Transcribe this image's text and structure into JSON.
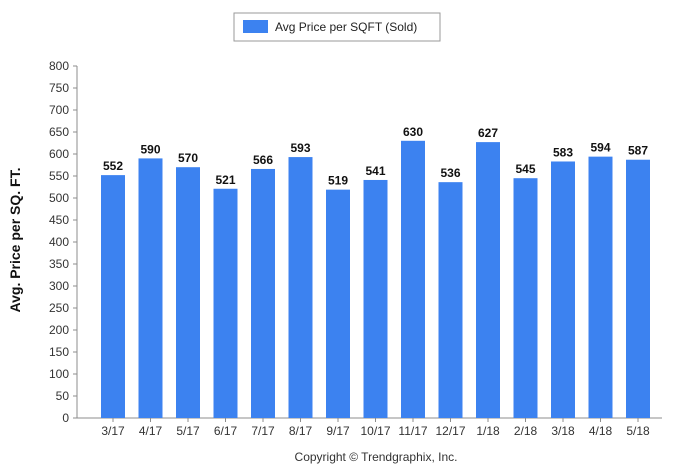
{
  "chart_data": {
    "type": "bar",
    "categories": [
      "3/17",
      "4/17",
      "5/17",
      "6/17",
      "7/17",
      "8/17",
      "9/17",
      "10/17",
      "11/17",
      "12/17",
      "1/18",
      "2/18",
      "3/18",
      "4/18",
      "5/18"
    ],
    "series": [
      {
        "name": "Avg Price per SQFT (Sold)",
        "color": "#3c82f0",
        "values": [
          552,
          590,
          570,
          521,
          566,
          593,
          519,
          541,
          630,
          536,
          627,
          545,
          583,
          594,
          587
        ]
      }
    ],
    "ylabel": "Avg. Price per SQ. FT.",
    "xlabel": "",
    "ylim": [
      0,
      800
    ],
    "yticks": [
      0,
      50,
      100,
      150,
      200,
      250,
      300,
      350,
      400,
      450,
      500,
      550,
      600,
      650,
      700,
      750,
      800
    ],
    "data_labels": true,
    "grid": false,
    "legend_position": "top-center"
  },
  "footer": {
    "copyright": "Copyright © Trendgraphix, Inc."
  }
}
